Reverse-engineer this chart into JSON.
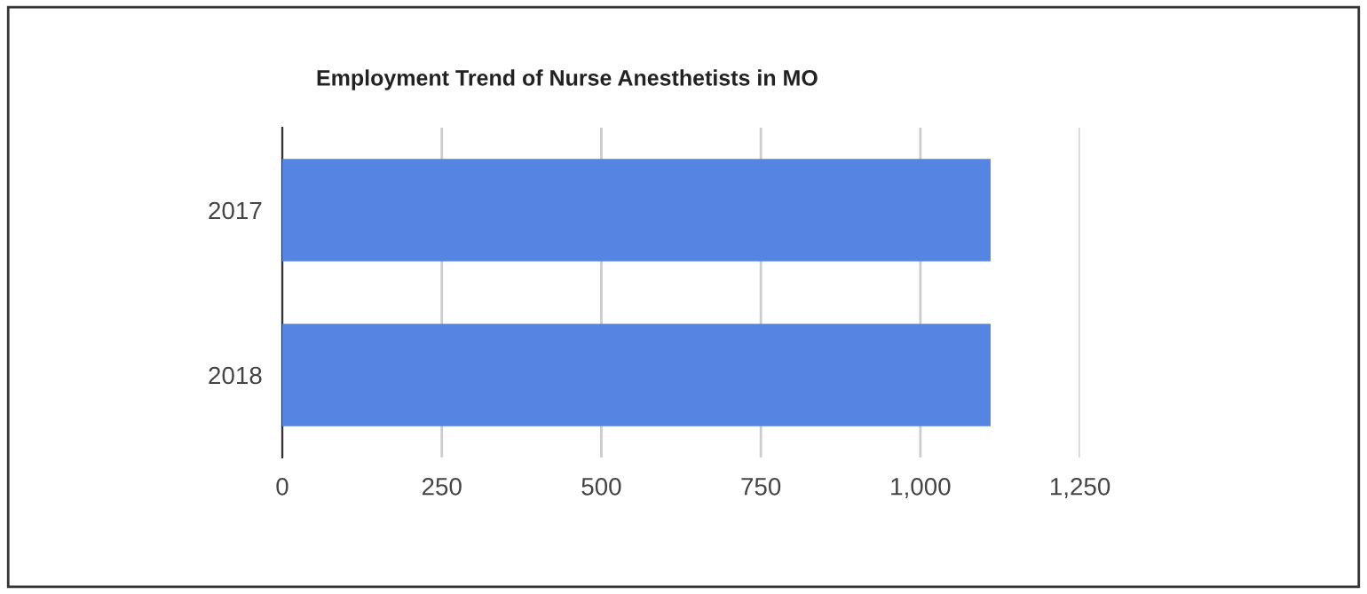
{
  "chart_data": {
    "type": "bar",
    "orientation": "horizontal",
    "title": "Employment Trend of Nurse Anesthetists in MO",
    "categories": [
      "2017",
      "2018"
    ],
    "series": [
      {
        "color": "#5485e3",
        "values": [
          1110,
          1110
        ]
      }
    ],
    "xlim": [
      0,
      1250
    ],
    "xticks": [
      0,
      250,
      500,
      750,
      {
        "value": 1000,
        "label": "1,000"
      },
      {
        "value": 1250,
        "label": "1,250"
      }
    ],
    "grid": "x",
    "legend": false
  }
}
